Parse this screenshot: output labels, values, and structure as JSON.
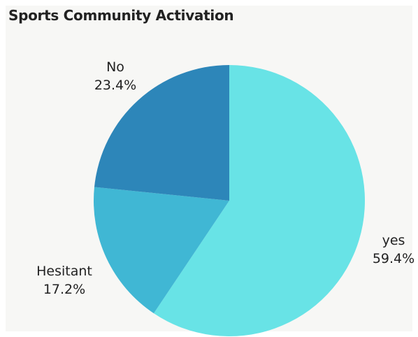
{
  "chart_data": {
    "type": "pie",
    "title": "Sports Community Activation",
    "slices": [
      {
        "label": "yes",
        "value": 59.4,
        "value_label": "59.4%",
        "color": "#68e3e6"
      },
      {
        "label": "Hesitant",
        "value": 17.2,
        "value_label": "17.2%",
        "color": "#40b7d4"
      },
      {
        "label": "No",
        "value": 23.4,
        "value_label": "23.4%",
        "color": "#2d86b9"
      }
    ],
    "start_angle_deg": 0,
    "direction": "clockwise"
  }
}
